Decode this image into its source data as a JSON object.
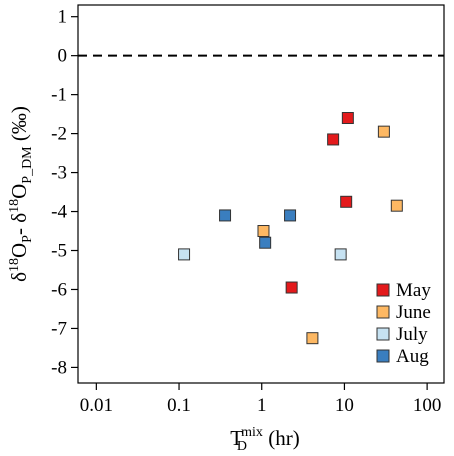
{
  "chart_data": {
    "type": "scatter",
    "title": "",
    "xlabel": {
      "base": "T",
      "sub": "D",
      "sup": "mix",
      "unit": " (hr)"
    },
    "ylabel": {
      "parts": [
        "δ",
        "18",
        "O",
        "P",
        "- δ",
        "18",
        "O",
        "P_DM",
        " (‰)"
      ]
    },
    "x_scale": "log",
    "xlim": [
      0.006,
      160
    ],
    "ylim": [
      -8.4,
      1.3
    ],
    "x_ticks": [
      0.01,
      0.1,
      1,
      10,
      100
    ],
    "x_tick_labels": [
      "0.01",
      "0.1",
      "1",
      "10",
      "100"
    ],
    "y_ticks": [
      1,
      0,
      -1,
      -2,
      -3,
      -4,
      -5,
      -6,
      -7,
      -8
    ],
    "y_tick_labels": [
      "1",
      "0",
      "-1",
      "-2",
      "-3",
      "-4",
      "-5",
      "-6",
      "-7",
      "-8"
    ],
    "reference_line": {
      "y": 0,
      "style": "dashed"
    },
    "grid": false,
    "legend_position": "bottom-right",
    "series": [
      {
        "name": "May",
        "color": "#e31a1c",
        "points": [
          [
            11,
            -1.6
          ],
          [
            7.3,
            -2.15
          ],
          [
            10.5,
            -3.75
          ],
          [
            2.3,
            -5.95
          ]
        ]
      },
      {
        "name": "June",
        "color": "#fdb863",
        "points": [
          [
            30,
            -1.95
          ],
          [
            43,
            -3.85
          ],
          [
            1.05,
            -4.5
          ],
          [
            4.1,
            -7.25
          ]
        ]
      },
      {
        "name": "July",
        "color": "#c6e2f2",
        "points": [
          [
            0.115,
            -5.1
          ],
          [
            9,
            -5.1
          ]
        ]
      },
      {
        "name": "Aug",
        "color": "#3a7ebf",
        "points": [
          [
            0.36,
            -4.1
          ],
          [
            2.2,
            -4.1
          ],
          [
            1.1,
            -4.8
          ]
        ]
      }
    ]
  }
}
